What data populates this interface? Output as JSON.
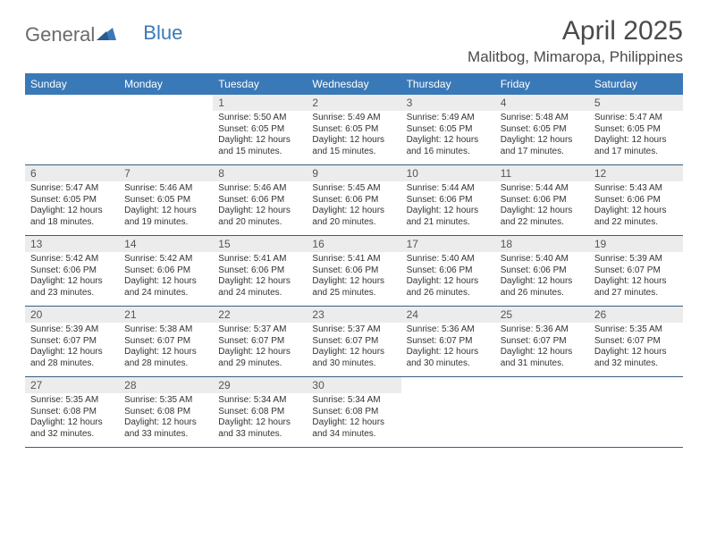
{
  "logo": {
    "text1": "General",
    "text2": "Blue"
  },
  "title": "April 2025",
  "location": "Malitbog, Mimaropa, Philippines",
  "colors": {
    "header_bg": "#3a79b7",
    "header_text": "#ffffff",
    "daynum_bg": "#ececec",
    "border": "#3a5f7d",
    "logo_gray": "#6b6b6b",
    "logo_blue": "#3a79b7",
    "text": "#333333"
  },
  "dayNames": [
    "Sunday",
    "Monday",
    "Tuesday",
    "Wednesday",
    "Thursday",
    "Friday",
    "Saturday"
  ],
  "weeks": [
    [
      null,
      null,
      {
        "n": "1",
        "sr": "Sunrise: 5:50 AM",
        "ss": "Sunset: 6:05 PM",
        "dl": "Daylight: 12 hours and 15 minutes."
      },
      {
        "n": "2",
        "sr": "Sunrise: 5:49 AM",
        "ss": "Sunset: 6:05 PM",
        "dl": "Daylight: 12 hours and 15 minutes."
      },
      {
        "n": "3",
        "sr": "Sunrise: 5:49 AM",
        "ss": "Sunset: 6:05 PM",
        "dl": "Daylight: 12 hours and 16 minutes."
      },
      {
        "n": "4",
        "sr": "Sunrise: 5:48 AM",
        "ss": "Sunset: 6:05 PM",
        "dl": "Daylight: 12 hours and 17 minutes."
      },
      {
        "n": "5",
        "sr": "Sunrise: 5:47 AM",
        "ss": "Sunset: 6:05 PM",
        "dl": "Daylight: 12 hours and 17 minutes."
      }
    ],
    [
      {
        "n": "6",
        "sr": "Sunrise: 5:47 AM",
        "ss": "Sunset: 6:05 PM",
        "dl": "Daylight: 12 hours and 18 minutes."
      },
      {
        "n": "7",
        "sr": "Sunrise: 5:46 AM",
        "ss": "Sunset: 6:05 PM",
        "dl": "Daylight: 12 hours and 19 minutes."
      },
      {
        "n": "8",
        "sr": "Sunrise: 5:46 AM",
        "ss": "Sunset: 6:06 PM",
        "dl": "Daylight: 12 hours and 20 minutes."
      },
      {
        "n": "9",
        "sr": "Sunrise: 5:45 AM",
        "ss": "Sunset: 6:06 PM",
        "dl": "Daylight: 12 hours and 20 minutes."
      },
      {
        "n": "10",
        "sr": "Sunrise: 5:44 AM",
        "ss": "Sunset: 6:06 PM",
        "dl": "Daylight: 12 hours and 21 minutes."
      },
      {
        "n": "11",
        "sr": "Sunrise: 5:44 AM",
        "ss": "Sunset: 6:06 PM",
        "dl": "Daylight: 12 hours and 22 minutes."
      },
      {
        "n": "12",
        "sr": "Sunrise: 5:43 AM",
        "ss": "Sunset: 6:06 PM",
        "dl": "Daylight: 12 hours and 22 minutes."
      }
    ],
    [
      {
        "n": "13",
        "sr": "Sunrise: 5:42 AM",
        "ss": "Sunset: 6:06 PM",
        "dl": "Daylight: 12 hours and 23 minutes."
      },
      {
        "n": "14",
        "sr": "Sunrise: 5:42 AM",
        "ss": "Sunset: 6:06 PM",
        "dl": "Daylight: 12 hours and 24 minutes."
      },
      {
        "n": "15",
        "sr": "Sunrise: 5:41 AM",
        "ss": "Sunset: 6:06 PM",
        "dl": "Daylight: 12 hours and 24 minutes."
      },
      {
        "n": "16",
        "sr": "Sunrise: 5:41 AM",
        "ss": "Sunset: 6:06 PM",
        "dl": "Daylight: 12 hours and 25 minutes."
      },
      {
        "n": "17",
        "sr": "Sunrise: 5:40 AM",
        "ss": "Sunset: 6:06 PM",
        "dl": "Daylight: 12 hours and 26 minutes."
      },
      {
        "n": "18",
        "sr": "Sunrise: 5:40 AM",
        "ss": "Sunset: 6:06 PM",
        "dl": "Daylight: 12 hours and 26 minutes."
      },
      {
        "n": "19",
        "sr": "Sunrise: 5:39 AM",
        "ss": "Sunset: 6:07 PM",
        "dl": "Daylight: 12 hours and 27 minutes."
      }
    ],
    [
      {
        "n": "20",
        "sr": "Sunrise: 5:39 AM",
        "ss": "Sunset: 6:07 PM",
        "dl": "Daylight: 12 hours and 28 minutes."
      },
      {
        "n": "21",
        "sr": "Sunrise: 5:38 AM",
        "ss": "Sunset: 6:07 PM",
        "dl": "Daylight: 12 hours and 28 minutes."
      },
      {
        "n": "22",
        "sr": "Sunrise: 5:37 AM",
        "ss": "Sunset: 6:07 PM",
        "dl": "Daylight: 12 hours and 29 minutes."
      },
      {
        "n": "23",
        "sr": "Sunrise: 5:37 AM",
        "ss": "Sunset: 6:07 PM",
        "dl": "Daylight: 12 hours and 30 minutes."
      },
      {
        "n": "24",
        "sr": "Sunrise: 5:36 AM",
        "ss": "Sunset: 6:07 PM",
        "dl": "Daylight: 12 hours and 30 minutes."
      },
      {
        "n": "25",
        "sr": "Sunrise: 5:36 AM",
        "ss": "Sunset: 6:07 PM",
        "dl": "Daylight: 12 hours and 31 minutes."
      },
      {
        "n": "26",
        "sr": "Sunrise: 5:35 AM",
        "ss": "Sunset: 6:07 PM",
        "dl": "Daylight: 12 hours and 32 minutes."
      }
    ],
    [
      {
        "n": "27",
        "sr": "Sunrise: 5:35 AM",
        "ss": "Sunset: 6:08 PM",
        "dl": "Daylight: 12 hours and 32 minutes."
      },
      {
        "n": "28",
        "sr": "Sunrise: 5:35 AM",
        "ss": "Sunset: 6:08 PM",
        "dl": "Daylight: 12 hours and 33 minutes."
      },
      {
        "n": "29",
        "sr": "Sunrise: 5:34 AM",
        "ss": "Sunset: 6:08 PM",
        "dl": "Daylight: 12 hours and 33 minutes."
      },
      {
        "n": "30",
        "sr": "Sunrise: 5:34 AM",
        "ss": "Sunset: 6:08 PM",
        "dl": "Daylight: 12 hours and 34 minutes."
      },
      null,
      null,
      null
    ]
  ]
}
